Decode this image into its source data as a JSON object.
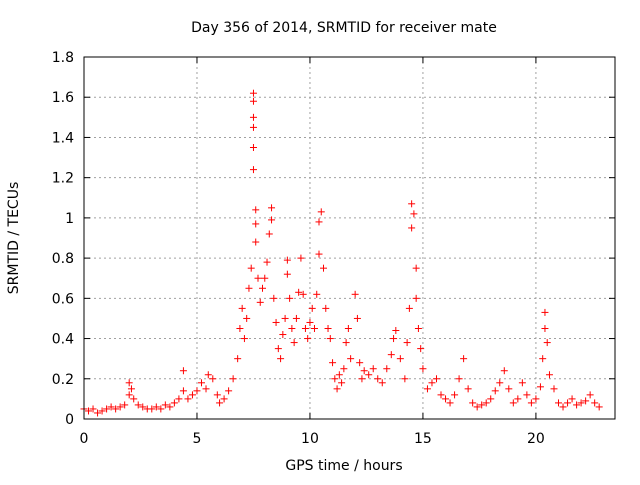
{
  "chart_data": {
    "type": "scatter",
    "title": "Day 356 of 2014, SRMTID for receiver mate",
    "xlabel": "GPS time / hours",
    "ylabel": "SRMTID / TECUs",
    "xlim": [
      0,
      23.5
    ],
    "ylim": [
      0,
      1.8
    ],
    "xticks": [
      0,
      5,
      10,
      15,
      20
    ],
    "xtick_labels": [
      "0",
      "5",
      "10",
      "15",
      "20"
    ],
    "yticks": [
      0,
      0.2,
      0.4,
      0.6,
      0.8,
      1,
      1.2,
      1.4,
      1.6,
      1.8
    ],
    "ytick_labels": [
      "0",
      "0.2",
      "0.4",
      "0.6",
      "0.8",
      "1",
      "1.2",
      "1.4",
      "1.6",
      "1.8"
    ],
    "grid": true,
    "marker": "+",
    "marker_color": "#ff0000",
    "series": [
      {
        "name": "SRMTID",
        "points": [
          [
            0.0,
            0.05
          ],
          [
            0.2,
            0.04
          ],
          [
            0.4,
            0.05
          ],
          [
            0.6,
            0.03
          ],
          [
            0.8,
            0.04
          ],
          [
            1.0,
            0.05
          ],
          [
            1.2,
            0.06
          ],
          [
            1.4,
            0.05
          ],
          [
            1.6,
            0.06
          ],
          [
            1.8,
            0.07
          ],
          [
            2.0,
            0.12
          ],
          [
            2.0,
            0.18
          ],
          [
            2.1,
            0.15
          ],
          [
            2.2,
            0.1
          ],
          [
            2.4,
            0.07
          ],
          [
            2.6,
            0.06
          ],
          [
            2.8,
            0.05
          ],
          [
            3.0,
            0.05
          ],
          [
            3.2,
            0.06
          ],
          [
            3.4,
            0.05
          ],
          [
            3.6,
            0.07
          ],
          [
            3.8,
            0.06
          ],
          [
            4.0,
            0.08
          ],
          [
            4.2,
            0.1
          ],
          [
            4.4,
            0.14
          ],
          [
            4.4,
            0.24
          ],
          [
            4.6,
            0.1
          ],
          [
            4.8,
            0.12
          ],
          [
            5.0,
            0.14
          ],
          [
            5.2,
            0.18
          ],
          [
            5.4,
            0.15
          ],
          [
            5.5,
            0.22
          ],
          [
            5.7,
            0.2
          ],
          [
            5.9,
            0.12
          ],
          [
            6.0,
            0.08
          ],
          [
            6.2,
            0.1
          ],
          [
            6.4,
            0.14
          ],
          [
            6.6,
            0.2
          ],
          [
            6.8,
            0.3
          ],
          [
            6.9,
            0.45
          ],
          [
            7.0,
            0.55
          ],
          [
            7.1,
            0.4
          ],
          [
            7.2,
            0.5
          ],
          [
            7.3,
            0.65
          ],
          [
            7.4,
            0.75
          ],
          [
            7.5,
            1.62
          ],
          [
            7.5,
            1.58
          ],
          [
            7.5,
            1.5
          ],
          [
            7.5,
            1.45
          ],
          [
            7.5,
            1.35
          ],
          [
            7.5,
            1.24
          ],
          [
            7.6,
            1.04
          ],
          [
            7.6,
            0.97
          ],
          [
            7.6,
            0.88
          ],
          [
            7.7,
            0.7
          ],
          [
            7.8,
            0.58
          ],
          [
            7.9,
            0.65
          ],
          [
            8.0,
            0.7
          ],
          [
            8.1,
            0.78
          ],
          [
            8.2,
            0.92
          ],
          [
            8.3,
            1.05
          ],
          [
            8.3,
            0.99
          ],
          [
            8.4,
            0.6
          ],
          [
            8.5,
            0.48
          ],
          [
            8.6,
            0.35
          ],
          [
            8.7,
            0.3
          ],
          [
            8.8,
            0.42
          ],
          [
            8.9,
            0.5
          ],
          [
            9.0,
            0.72
          ],
          [
            9.0,
            0.79
          ],
          [
            9.1,
            0.6
          ],
          [
            9.2,
            0.45
          ],
          [
            9.3,
            0.38
          ],
          [
            9.4,
            0.5
          ],
          [
            9.5,
            0.63
          ],
          [
            9.6,
            0.8
          ],
          [
            9.7,
            0.62
          ],
          [
            9.8,
            0.45
          ],
          [
            9.9,
            0.4
          ],
          [
            10.0,
            0.48
          ],
          [
            10.1,
            0.55
          ],
          [
            10.2,
            0.45
          ],
          [
            10.3,
            0.62
          ],
          [
            10.4,
            0.82
          ],
          [
            10.4,
            0.98
          ],
          [
            10.5,
            1.03
          ],
          [
            10.6,
            0.75
          ],
          [
            10.7,
            0.55
          ],
          [
            10.8,
            0.45
          ],
          [
            10.9,
            0.4
          ],
          [
            11.0,
            0.28
          ],
          [
            11.1,
            0.2
          ],
          [
            11.2,
            0.15
          ],
          [
            11.3,
            0.22
          ],
          [
            11.4,
            0.18
          ],
          [
            11.5,
            0.25
          ],
          [
            11.6,
            0.38
          ],
          [
            11.7,
            0.45
          ],
          [
            11.8,
            0.3
          ],
          [
            12.0,
            0.62
          ],
          [
            12.1,
            0.5
          ],
          [
            12.2,
            0.28
          ],
          [
            12.3,
            0.2
          ],
          [
            12.4,
            0.24
          ],
          [
            12.6,
            0.22
          ],
          [
            12.8,
            0.25
          ],
          [
            13.0,
            0.2
          ],
          [
            13.2,
            0.18
          ],
          [
            13.4,
            0.25
          ],
          [
            13.6,
            0.32
          ],
          [
            13.7,
            0.4
          ],
          [
            13.8,
            0.44
          ],
          [
            14.0,
            0.3
          ],
          [
            14.2,
            0.2
          ],
          [
            14.3,
            0.38
          ],
          [
            14.4,
            0.55
          ],
          [
            14.5,
            0.95
          ],
          [
            14.5,
            1.07
          ],
          [
            14.6,
            1.02
          ],
          [
            14.7,
            0.75
          ],
          [
            14.7,
            0.6
          ],
          [
            14.8,
            0.45
          ],
          [
            14.9,
            0.35
          ],
          [
            15.0,
            0.25
          ],
          [
            15.2,
            0.15
          ],
          [
            15.4,
            0.18
          ],
          [
            15.6,
            0.2
          ],
          [
            15.8,
            0.12
          ],
          [
            16.0,
            0.1
          ],
          [
            16.2,
            0.08
          ],
          [
            16.4,
            0.12
          ],
          [
            16.6,
            0.2
          ],
          [
            16.8,
            0.3
          ],
          [
            17.0,
            0.15
          ],
          [
            17.2,
            0.08
          ],
          [
            17.4,
            0.06
          ],
          [
            17.6,
            0.07
          ],
          [
            17.8,
            0.08
          ],
          [
            18.0,
            0.1
          ],
          [
            18.2,
            0.14
          ],
          [
            18.4,
            0.18
          ],
          [
            18.6,
            0.24
          ],
          [
            18.8,
            0.15
          ],
          [
            19.0,
            0.08
          ],
          [
            19.2,
            0.1
          ],
          [
            19.4,
            0.18
          ],
          [
            19.6,
            0.12
          ],
          [
            19.8,
            0.08
          ],
          [
            20.0,
            0.1
          ],
          [
            20.2,
            0.16
          ],
          [
            20.3,
            0.3
          ],
          [
            20.4,
            0.45
          ],
          [
            20.4,
            0.53
          ],
          [
            20.5,
            0.38
          ],
          [
            20.6,
            0.22
          ],
          [
            20.8,
            0.15
          ],
          [
            21.0,
            0.08
          ],
          [
            21.2,
            0.06
          ],
          [
            21.4,
            0.08
          ],
          [
            21.6,
            0.1
          ],
          [
            21.8,
            0.07
          ],
          [
            22.0,
            0.08
          ],
          [
            22.2,
            0.09
          ],
          [
            22.4,
            0.12
          ],
          [
            22.6,
            0.08
          ],
          [
            22.8,
            0.06
          ]
        ]
      }
    ]
  }
}
